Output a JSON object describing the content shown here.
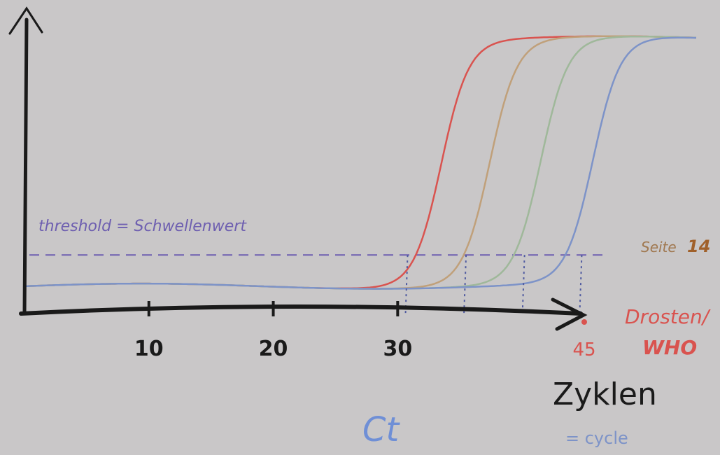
{
  "chart_data": {
    "type": "line",
    "title": "",
    "xlabel": "Zyklen",
    "xlabel_note": "= cycle",
    "ylabel": "",
    "x_ticks": [
      "10",
      "20",
      "30",
      "45"
    ],
    "xlim": [
      0,
      45
    ],
    "ylim": [
      0,
      1
    ],
    "grid": false,
    "threshold": {
      "label": "threshold = Schwellenwert",
      "value": 0.15
    },
    "ct_label": "Ct",
    "series": [
      {
        "color": "#d9534f",
        "midpoint": 33.5,
        "ct": 30.8
      },
      {
        "color": "#c0a07a",
        "midpoint": 37.4,
        "ct": 35.5
      },
      {
        "color": "#9fb89a",
        "midpoint": 41.5,
        "ct": 40.2
      },
      {
        "color": "#7d93c8",
        "midpoint": 45.7,
        "ct": 44.8
      }
    ],
    "annotations": {
      "seite_text": "Seite",
      "seite_num": "14",
      "drosten": "Drosten/",
      "who": "WHO"
    }
  }
}
